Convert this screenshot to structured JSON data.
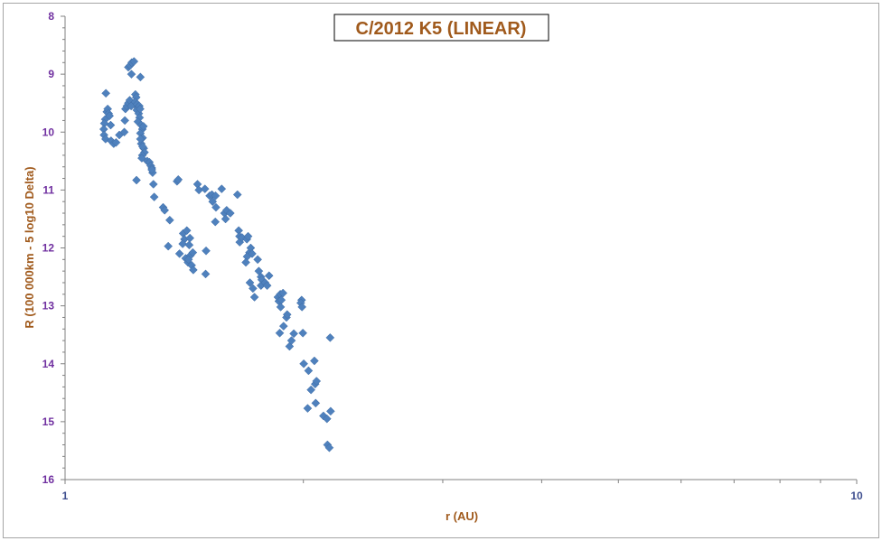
{
  "chart_data": {
    "type": "scatter",
    "title": "C/2012 K5 (LINEAR)",
    "xlabel": "r (AU)",
    "ylabel": "R (100 000km - 5 log10 Delta)",
    "x_scale": "log",
    "xlim": [
      1,
      10
    ],
    "ylim": [
      8,
      16
    ],
    "y_inverted": true,
    "grid": false,
    "x_tick_labels": [
      "1",
      "10"
    ],
    "y_tick_labels": [
      "8",
      "9",
      "10",
      "11",
      "12",
      "13",
      "14",
      "15",
      "16"
    ],
    "colors": {
      "marker": "#4f81bd",
      "title": "#a05a1c",
      "ytick": "#7030a0",
      "xtick": "#3f4f8f"
    },
    "series": [
      {
        "marker": "diamond",
        "points": [
          [
            1.126,
            9.33
          ],
          [
            1.124,
            9.78
          ],
          [
            1.121,
            9.85
          ],
          [
            1.119,
            9.95
          ],
          [
            1.12,
            10.05
          ],
          [
            1.125,
            10.12
          ],
          [
            1.129,
            9.65
          ],
          [
            1.132,
            9.6
          ],
          [
            1.135,
            9.68
          ],
          [
            1.138,
            9.72
          ],
          [
            1.142,
            9.88
          ],
          [
            1.143,
            10.15
          ],
          [
            1.152,
            10.2
          ],
          [
            1.16,
            10.18
          ],
          [
            1.171,
            10.05
          ],
          [
            1.188,
            10.0
          ],
          [
            1.19,
            9.8
          ],
          [
            1.192,
            9.6
          ],
          [
            1.197,
            9.55
          ],
          [
            1.202,
            9.5
          ],
          [
            1.207,
            9.45
          ],
          [
            1.212,
            9.55
          ],
          [
            1.202,
            8.88
          ],
          [
            1.208,
            8.85
          ],
          [
            1.214,
            8.8
          ],
          [
            1.222,
            8.78
          ],
          [
            1.213,
            9.0
          ],
          [
            1.245,
            9.05
          ],
          [
            1.227,
            9.35
          ],
          [
            1.23,
            9.4
          ],
          [
            1.226,
            9.48
          ],
          [
            1.233,
            9.52
          ],
          [
            1.236,
            9.58
          ],
          [
            1.232,
            9.62
          ],
          [
            1.239,
            9.68
          ],
          [
            1.242,
            9.75
          ],
          [
            1.236,
            9.82
          ],
          [
            1.248,
            9.88
          ],
          [
            1.252,
            9.95
          ],
          [
            1.245,
            10.02
          ],
          [
            1.253,
            10.1
          ],
          [
            1.248,
            10.2
          ],
          [
            1.257,
            10.28
          ],
          [
            1.26,
            10.35
          ],
          [
            1.252,
            10.4
          ],
          [
            1.25,
            10.45
          ],
          [
            1.27,
            10.5
          ],
          [
            1.278,
            10.52
          ],
          [
            1.283,
            10.58
          ],
          [
            1.287,
            10.62
          ],
          [
            1.29,
            10.7
          ],
          [
            1.293,
            10.9
          ],
          [
            1.296,
            11.12
          ],
          [
            1.287,
            10.65
          ],
          [
            1.231,
            10.83
          ],
          [
            1.253,
            10.25
          ],
          [
            1.245,
            10.12
          ],
          [
            1.241,
            9.55
          ],
          [
            1.244,
            9.6
          ],
          [
            1.256,
            9.9
          ],
          [
            1.33,
            11.3
          ],
          [
            1.336,
            11.35
          ],
          [
            1.356,
            11.52
          ],
          [
            1.35,
            11.97
          ],
          [
            1.385,
            10.85
          ],
          [
            1.39,
            10.82
          ],
          [
            1.395,
            12.1
          ],
          [
            1.41,
            11.75
          ],
          [
            1.415,
            11.85
          ],
          [
            1.408,
            11.93
          ],
          [
            1.425,
            11.7
          ],
          [
            1.435,
            11.95
          ],
          [
            1.42,
            12.18
          ],
          [
            1.43,
            12.25
          ],
          [
            1.44,
            12.13
          ],
          [
            1.45,
            12.08
          ],
          [
            1.445,
            12.3
          ],
          [
            1.452,
            12.38
          ],
          [
            1.438,
            11.83
          ],
          [
            1.432,
            12.2
          ],
          [
            1.47,
            10.9
          ],
          [
            1.476,
            11.0
          ],
          [
            1.502,
            10.98
          ],
          [
            1.507,
            12.05
          ],
          [
            1.505,
            12.45
          ],
          [
            1.523,
            11.1
          ],
          [
            1.533,
            11.08
          ],
          [
            1.536,
            11.2
          ],
          [
            1.549,
            11.1
          ],
          [
            1.551,
            11.3
          ],
          [
            1.548,
            11.55
          ],
          [
            1.577,
            10.98
          ],
          [
            1.59,
            11.4
          ],
          [
            1.595,
            11.5
          ],
          [
            1.6,
            11.35
          ],
          [
            1.617,
            11.4
          ],
          [
            1.651,
            11.08
          ],
          [
            1.657,
            11.7
          ],
          [
            1.661,
            11.8
          ],
          [
            1.662,
            11.9
          ],
          [
            1.673,
            11.82
          ],
          [
            1.697,
            11.85
          ],
          [
            1.703,
            11.8
          ],
          [
            1.71,
            12.08
          ],
          [
            1.698,
            12.15
          ],
          [
            1.692,
            12.25
          ],
          [
            1.716,
            12.0
          ],
          [
            1.723,
            12.1
          ],
          [
            1.712,
            12.6
          ],
          [
            1.727,
            12.7
          ],
          [
            1.735,
            12.85
          ],
          [
            1.751,
            12.2
          ],
          [
            1.757,
            12.4
          ],
          [
            1.768,
            12.5
          ],
          [
            1.772,
            12.55
          ],
          [
            1.768,
            12.65
          ],
          [
            1.789,
            12.6
          ],
          [
            1.8,
            12.65
          ],
          [
            1.81,
            12.48
          ],
          [
            1.857,
            12.85
          ],
          [
            1.862,
            12.92
          ],
          [
            1.87,
            12.8
          ],
          [
            1.876,
            12.9
          ],
          [
            1.885,
            12.78
          ],
          [
            1.872,
            13.02
          ],
          [
            1.867,
            13.47
          ],
          [
            1.888,
            13.35
          ],
          [
            1.904,
            13.2
          ],
          [
            1.908,
            13.15
          ],
          [
            1.921,
            13.7
          ],
          [
            1.932,
            13.6
          ],
          [
            1.945,
            13.48
          ],
          [
            1.99,
            12.9
          ],
          [
            1.985,
            12.95
          ],
          [
            1.992,
            13.02
          ],
          [
            1.997,
            13.47
          ],
          [
            2.002,
            14.0
          ],
          [
            2.03,
            14.12
          ],
          [
            2.025,
            14.77
          ],
          [
            2.045,
            14.45
          ],
          [
            2.07,
            14.35
          ],
          [
            2.078,
            14.3
          ],
          [
            2.065,
            13.95
          ],
          [
            2.073,
            14.68
          ],
          [
            2.12,
            14.9
          ],
          [
            2.142,
            14.95
          ],
          [
            2.165,
            14.82
          ],
          [
            2.162,
            13.55
          ],
          [
            2.145,
            15.4
          ],
          [
            2.157,
            15.45
          ]
        ]
      }
    ]
  }
}
